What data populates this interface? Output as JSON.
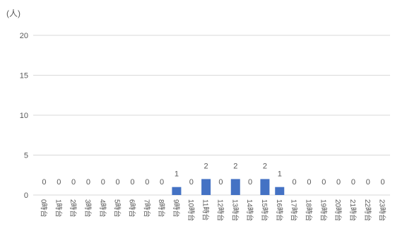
{
  "chart_data": {
    "type": "bar",
    "ylabel": "(人)",
    "xlabel": "",
    "categories": [
      "0時台",
      "1時台",
      "2時台",
      "3時台",
      "4時台",
      "5時台",
      "6時台",
      "7時台",
      "8時台",
      "9時台",
      "10時台",
      "11時台",
      "12時台",
      "13時台",
      "14時台",
      "15時台",
      "16時台",
      "17時台",
      "18時台",
      "19時台",
      "20時台",
      "21時台",
      "22時台",
      "23時台"
    ],
    "values": [
      0,
      0,
      0,
      0,
      0,
      0,
      0,
      0,
      0,
      1,
      0,
      2,
      0,
      2,
      0,
      2,
      1,
      0,
      0,
      0,
      0,
      0,
      0,
      0
    ],
    "ylim": [
      0,
      20
    ],
    "yticks": [
      0,
      5,
      10,
      15,
      20
    ],
    "grid": true,
    "data_labels": true,
    "colors": {
      "bar": "#4472C4",
      "text": "#595959",
      "grid": "#D9D9D9"
    }
  }
}
